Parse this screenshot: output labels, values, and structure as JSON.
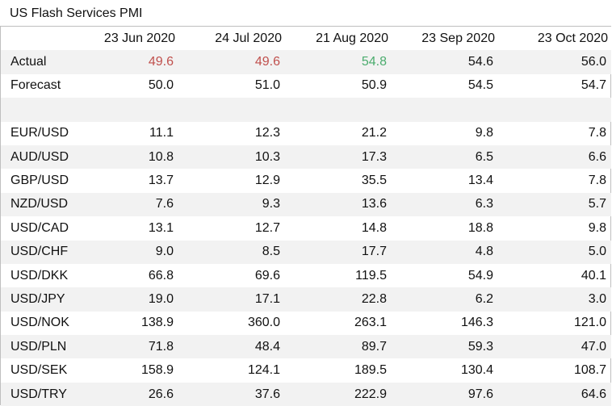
{
  "title": "US Flash Services PMI",
  "columns": [
    "",
    "23 Jun 2020",
    "24 Jul 2020",
    "21 Aug 2020",
    "23 Sep 2020",
    "23 Oct 2020"
  ],
  "colors": {
    "negative": "#c0504d",
    "positive": "#4bac6e",
    "shade": "#f2f2f2"
  },
  "rows": [
    {
      "label": "Actual",
      "values": [
        "49.6",
        "49.6",
        "54.8",
        "54.6",
        "56.0"
      ],
      "styles": [
        "red",
        "red",
        "green",
        "",
        ""
      ]
    },
    {
      "label": "Forecast",
      "values": [
        "50.0",
        "51.0",
        "50.9",
        "54.5",
        "54.7"
      ],
      "styles": [
        "",
        "",
        "",
        "",
        ""
      ]
    },
    {
      "label": "",
      "values": [
        "",
        "",
        "",
        "",
        ""
      ],
      "styles": [
        "",
        "",
        "",
        "",
        ""
      ]
    },
    {
      "label": "EUR/USD",
      "values": [
        "11.1",
        "12.3",
        "21.2",
        "9.8",
        "7.8"
      ],
      "styles": [
        "",
        "",
        "",
        "",
        ""
      ]
    },
    {
      "label": "AUD/USD",
      "values": [
        "10.8",
        "10.3",
        "17.3",
        "6.5",
        "6.6"
      ],
      "styles": [
        "",
        "",
        "",
        "",
        ""
      ]
    },
    {
      "label": "GBP/USD",
      "values": [
        "13.7",
        "12.9",
        "35.5",
        "13.4",
        "7.8"
      ],
      "styles": [
        "",
        "",
        "",
        "",
        ""
      ]
    },
    {
      "label": "NZD/USD",
      "values": [
        "7.6",
        "9.3",
        "13.6",
        "6.3",
        "5.7"
      ],
      "styles": [
        "",
        "",
        "",
        "",
        ""
      ]
    },
    {
      "label": "USD/CAD",
      "values": [
        "13.1",
        "12.7",
        "14.8",
        "18.8",
        "9.8"
      ],
      "styles": [
        "",
        "",
        "",
        "",
        ""
      ]
    },
    {
      "label": "USD/CHF",
      "values": [
        "9.0",
        "8.5",
        "17.7",
        "4.8",
        "5.0"
      ],
      "styles": [
        "",
        "",
        "",
        "",
        ""
      ]
    },
    {
      "label": "USD/DKK",
      "values": [
        "66.8",
        "69.6",
        "119.5",
        "54.9",
        "40.1"
      ],
      "styles": [
        "",
        "",
        "",
        "",
        ""
      ]
    },
    {
      "label": "USD/JPY",
      "values": [
        "19.0",
        "17.1",
        "22.8",
        "6.2",
        "3.0"
      ],
      "styles": [
        "",
        "",
        "",
        "",
        ""
      ]
    },
    {
      "label": "USD/NOK",
      "values": [
        "138.9",
        "360.0",
        "263.1",
        "146.3",
        "121.0"
      ],
      "styles": [
        "",
        "",
        "",
        "",
        ""
      ]
    },
    {
      "label": "USD/PLN",
      "values": [
        "71.8",
        "48.4",
        "89.7",
        "59.3",
        "47.0"
      ],
      "styles": [
        "",
        "",
        "",
        "",
        ""
      ]
    },
    {
      "label": "USD/SEK",
      "values": [
        "158.9",
        "124.1",
        "189.5",
        "130.4",
        "108.7"
      ],
      "styles": [
        "",
        "",
        "",
        "",
        ""
      ]
    },
    {
      "label": "USD/TRY",
      "values": [
        "26.6",
        "37.6",
        "222.9",
        "97.6",
        "64.6"
      ],
      "styles": [
        "",
        "",
        "",
        "",
        ""
      ]
    }
  ]
}
